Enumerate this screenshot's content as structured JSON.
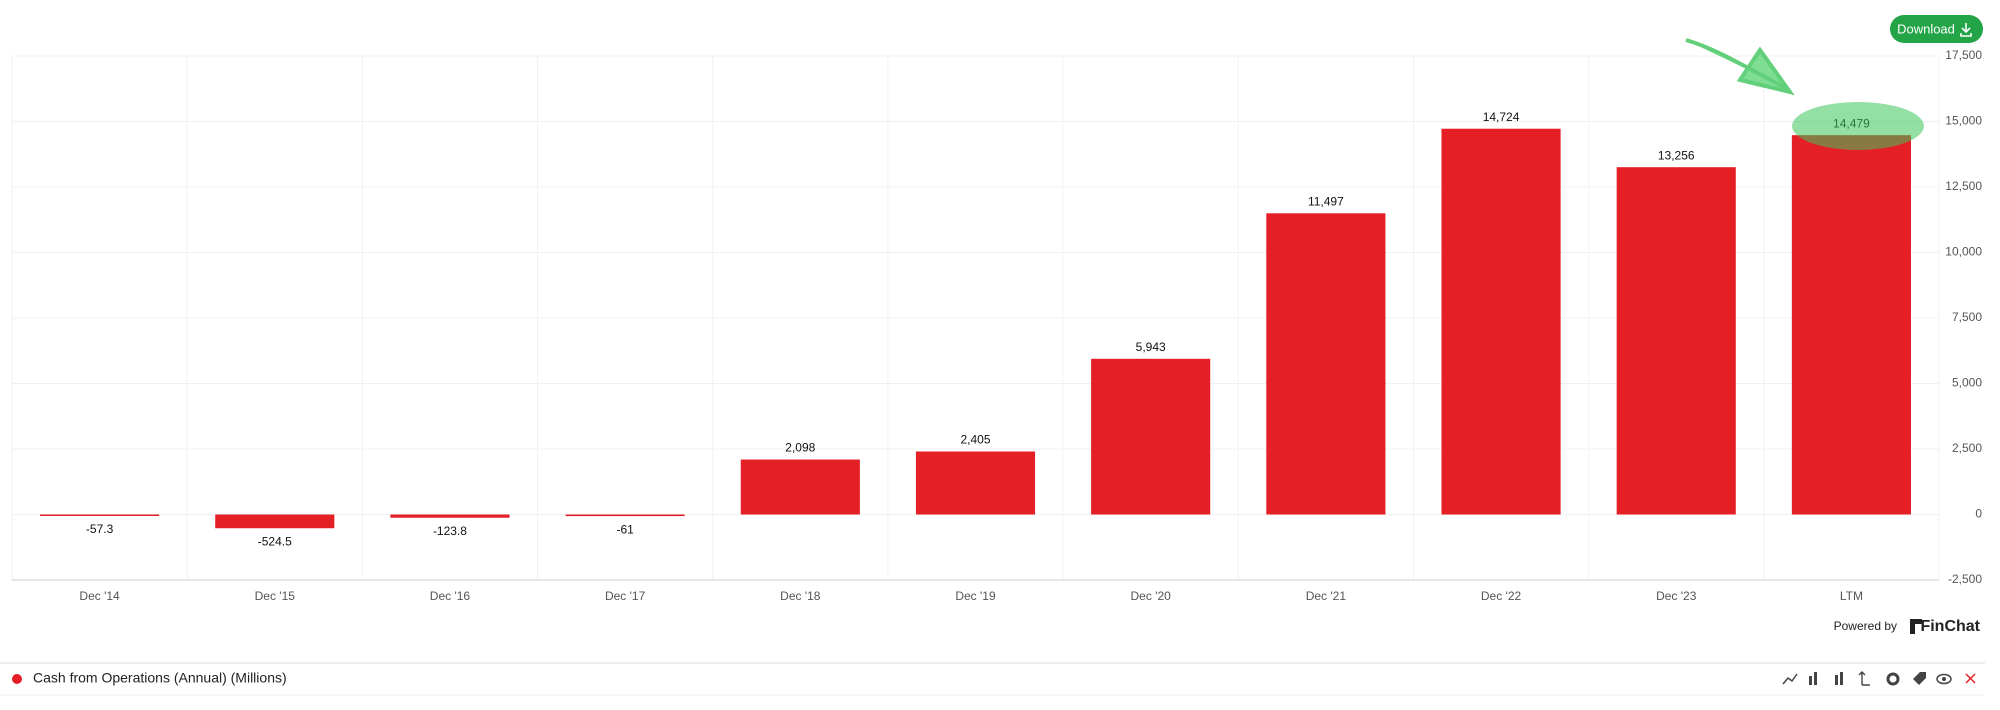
{
  "header": {
    "download": "Download"
  },
  "chart_data": {
    "type": "bar",
    "categories": [
      "Dec '14",
      "Dec '15",
      "Dec '16",
      "Dec '17",
      "Dec '18",
      "Dec '19",
      "Dec '20",
      "Dec '21",
      "Dec '22",
      "Dec '23",
      "LTM"
    ],
    "series": [
      {
        "name": "Cash from Operations (Annual) (Millions)",
        "color": "#e41f26",
        "values": [
          -57.3,
          -524.5,
          -123.8,
          -61,
          2098,
          2405,
          5943,
          11497,
          14724,
          13256,
          14479
        ],
        "value_labels": [
          "-57.3",
          "-524.5",
          "-123.8",
          "-61",
          "2,098",
          "2,405",
          "5,943",
          "11,497",
          "14,724",
          "13,256",
          "14,479"
        ]
      }
    ],
    "ylim": [
      -2500,
      17500
    ],
    "yticks": [
      {
        "value": -2500,
        "label": "-2,500"
      },
      0,
      {
        "value": 2500,
        "label": "2,500"
      },
      {
        "value": 5000,
        "label": "5,000"
      },
      {
        "value": 7500,
        "label": "7,500"
      },
      {
        "value": 10000,
        "label": "10,000"
      },
      {
        "value": 12500,
        "label": "12,500"
      },
      {
        "value": 15000,
        "label": "15,000"
      },
      {
        "value": 17500,
        "label": "17,500"
      }
    ],
    "grid": true
  },
  "footer": {
    "powered_by": "Powered by",
    "brand": "FinChat"
  }
}
